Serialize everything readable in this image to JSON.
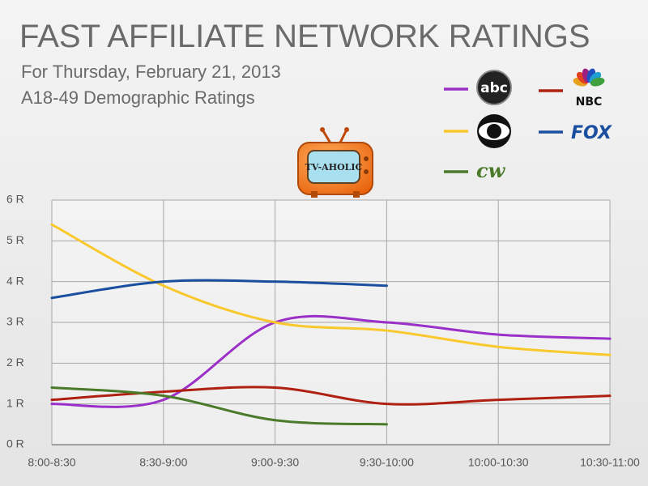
{
  "chart_data": {
    "type": "line",
    "title": "FAST AFFILIATE NETWORK RATINGS",
    "subtitle": [
      "For Thursday, February 21, 2013",
      "A18-49 Demographic Ratings"
    ],
    "annotation": "TV-AHOLIC",
    "categories": [
      "8:00-8:30",
      "8:30-9:00",
      "9:00-9:30",
      "9:30-10:00",
      "10:00-10:30",
      "10:30-11:00"
    ],
    "series": [
      {
        "name": "abc",
        "color": "#9b30c8",
        "values": [
          1.0,
          1.1,
          3.0,
          3.0,
          2.7,
          2.6
        ]
      },
      {
        "name": "NBC",
        "color": "#b02010",
        "values": [
          1.1,
          1.3,
          1.4,
          1.0,
          1.1,
          1.2
        ]
      },
      {
        "color": "#f9c82c",
        "values": [
          5.4,
          3.9,
          3.0,
          2.8,
          2.4,
          2.2
        ]
      },
      {
        "name": "FOX",
        "color": "#1a4fa0",
        "values": [
          3.6,
          4.0,
          4.0,
          3.9,
          null,
          null
        ]
      },
      {
        "name": "cw",
        "color": "#4a7a2a",
        "values": [
          1.4,
          1.2,
          0.6,
          0.5,
          null,
          null
        ]
      }
    ],
    "ylim": [
      0,
      6
    ],
    "yticks": [
      {
        "value": 0,
        "label": "0 R"
      },
      {
        "value": 1,
        "label": "1 R"
      },
      {
        "value": 2,
        "label": "2 R"
      },
      {
        "value": 3,
        "label": "3 R"
      },
      {
        "value": 4,
        "label": "4 R"
      },
      {
        "value": 5,
        "label": "5 R"
      },
      {
        "value": 6,
        "label": "6 R"
      }
    ],
    "grid": true
  }
}
